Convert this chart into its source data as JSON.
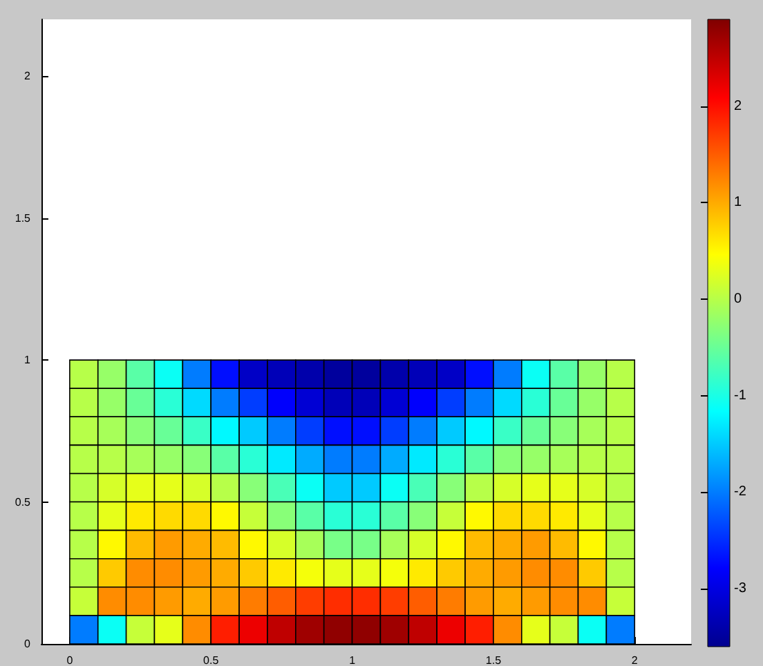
{
  "chart_data": {
    "type": "heatmap",
    "x": [
      0.05,
      0.15,
      0.25,
      0.35,
      0.45,
      0.55,
      0.65,
      0.75,
      0.85,
      0.95,
      1.05,
      1.15,
      1.25,
      1.35,
      1.45,
      1.55,
      1.65,
      1.75,
      1.85,
      1.95
    ],
    "y": [
      0.95,
      0.85,
      0.75,
      0.65,
      0.55,
      0.45,
      0.35,
      0.25,
      0.15,
      0.05
    ],
    "cells": [
      [
        0.0,
        -0.2,
        -0.6,
        -1.1,
        -2.0,
        -2.7,
        -3.2,
        -3.3,
        -3.4,
        -3.5,
        -3.5,
        -3.4,
        -3.3,
        -3.2,
        -2.7,
        -2.0,
        -1.1,
        -0.6,
        -0.2,
        0.0
      ],
      [
        0.0,
        -0.2,
        -0.5,
        -0.9,
        -1.4,
        -2.0,
        -2.4,
        -2.8,
        -3.1,
        -3.3,
        -3.3,
        -3.1,
        -2.8,
        -2.4,
        -2.0,
        -1.4,
        -0.9,
        -0.5,
        -0.2,
        0.0
      ],
      [
        0.0,
        -0.1,
        -0.3,
        -0.5,
        -0.8,
        -1.2,
        -1.5,
        -2.0,
        -2.4,
        -2.7,
        -2.7,
        -2.4,
        -2.0,
        -1.5,
        -1.2,
        -0.8,
        -0.5,
        -0.3,
        -0.1,
        0.0
      ],
      [
        0.0,
        0.0,
        -0.1,
        -0.2,
        -0.3,
        -0.6,
        -0.9,
        -1.3,
        -1.7,
        -2.0,
        -2.0,
        -1.7,
        -1.3,
        -0.9,
        -0.6,
        -0.3,
        -0.2,
        -0.1,
        0.0,
        0.0
      ],
      [
        0.0,
        0.2,
        0.3,
        0.3,
        0.2,
        0.0,
        -0.3,
        -0.7,
        -1.1,
        -1.5,
        -1.5,
        -1.1,
        -0.7,
        -0.3,
        0.0,
        0.2,
        0.3,
        0.3,
        0.2,
        0.0
      ],
      [
        0.0,
        0.3,
        0.6,
        0.7,
        0.7,
        0.5,
        0.1,
        -0.3,
        -0.6,
        -0.9,
        -0.9,
        -0.6,
        -0.3,
        0.1,
        0.5,
        0.7,
        0.7,
        0.6,
        0.3,
        0.0
      ],
      [
        0.0,
        0.5,
        0.9,
        1.1,
        1.0,
        0.9,
        0.5,
        0.2,
        -0.1,
        -0.4,
        -0.4,
        -0.1,
        0.2,
        0.5,
        0.9,
        1.0,
        1.1,
        0.9,
        0.5,
        0.0
      ],
      [
        0.0,
        0.8,
        1.2,
        1.2,
        1.1,
        1.0,
        0.8,
        0.6,
        0.4,
        0.3,
        0.3,
        0.4,
        0.6,
        0.8,
        1.0,
        1.1,
        1.2,
        1.2,
        0.8,
        0.0
      ],
      [
        0.1,
        1.2,
        1.2,
        1.1,
        1.0,
        1.1,
        1.3,
        1.5,
        1.7,
        1.8,
        1.8,
        1.7,
        1.5,
        1.3,
        1.1,
        1.0,
        1.1,
        1.2,
        1.2,
        0.1
      ],
      [
        -2.0,
        -1.1,
        0.1,
        0.3,
        1.2,
        1.9,
        2.2,
        2.5,
        2.7,
        2.8,
        2.8,
        2.7,
        2.5,
        2.2,
        1.9,
        1.2,
        0.3,
        0.1,
        -1.1,
        -2.0
      ]
    ],
    "xlim": [
      -0.1,
      2.2
    ],
    "xticks": [
      0,
      0.5,
      1,
      1.5,
      2
    ],
    "ylim": [
      0,
      2.2
    ],
    "yticks": [
      0,
      0.5,
      1,
      1.5,
      2
    ],
    "clim": [
      -3.6,
      2.9
    ],
    "cticks": [
      -3,
      -2,
      -1,
      0,
      1,
      2
    ],
    "grid": false
  }
}
